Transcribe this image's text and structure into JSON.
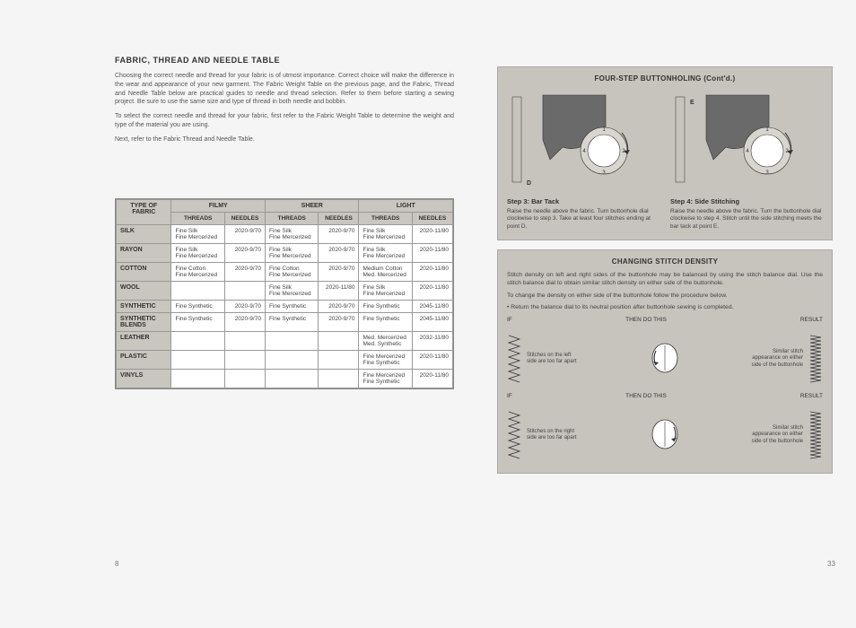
{
  "left": {
    "title": "FABRIC, THREAD AND NEEDLE TABLE",
    "para1": "Choosing the correct needle and thread for your fabric is of utmost importance. Correct choice will make the difference in the wear and appearance of your new garment. The Fabric Weight Table on the previous page, and the Fabric, Thread and Needle Table below are practical guides to needle and thread selection. Refer to them before starting a sewing project. Be sure to use the same size and type of thread in both needle and bobbin.",
    "para2": "To select the correct needle and thread for your fabric, first refer to the Fabric Weight Table to determine the weight and type of the material you are using.",
    "para3": "Next, refer to the Fabric Thread and Needle Table.",
    "table": {
      "top_headers": [
        "TYPE OF FABRIC",
        "FILMY",
        "SHEER",
        "LIGHT"
      ],
      "sub_headers": [
        "THREADS",
        "NEEDLES",
        "THREADS",
        "NEEDLES",
        "THREADS",
        "NEEDLES"
      ],
      "rows": [
        {
          "fabric": "SILK",
          "filmy_t": "Fine Silk\nFine Mercerized",
          "filmy_n": "2020-9/70",
          "sheer_t": "Fine Silk\nFine Mercerized",
          "sheer_n": "2020-9/70",
          "light_t": "Fine Silk\nFine Mercerized",
          "light_n": "2020-11/80"
        },
        {
          "fabric": "RAYON",
          "filmy_t": "Fine Silk\nFine Mercerized",
          "filmy_n": "2020-9/70",
          "sheer_t": "Fine Silk\nFine Mercerized",
          "sheer_n": "2020-9/70",
          "light_t": "Fine Silk\nFine Mercerized",
          "light_n": "2020-11/80"
        },
        {
          "fabric": "COTTON",
          "filmy_t": "Fine Cotton\nFine Mercerized",
          "filmy_n": "2020-9/70",
          "sheer_t": "Fine Cotton\nFine Mercerized",
          "sheer_n": "2020-9/70",
          "light_t": "Medium Cotton\nMed. Mercerized",
          "light_n": "2020-11/80"
        },
        {
          "fabric": "WOOL",
          "filmy_t": "",
          "filmy_n": "",
          "sheer_t": "Fine Silk\nFine Mercerized",
          "sheer_n": "2020-11/80",
          "light_t": "Fine Silk\nFine Mercerized",
          "light_n": "2020-11/80"
        },
        {
          "fabric": "SYNTHETIC",
          "filmy_t": "Fine Synthetic",
          "filmy_n": "2020-9/70",
          "sheer_t": "Fine Synthetic",
          "sheer_n": "2020-9/70",
          "light_t": "Fine Synthetic",
          "light_n": "2045-11/80"
        },
        {
          "fabric": "SYNTHETIC BLENDS",
          "filmy_t": "Fine Synthetic",
          "filmy_n": "2020-9/70",
          "sheer_t": "Fine Synthetic",
          "sheer_n": "2020-9/70",
          "light_t": "Fine Synthetic",
          "light_n": "2045-11/80"
        },
        {
          "fabric": "LEATHER",
          "filmy_t": "",
          "filmy_n": "",
          "sheer_t": "",
          "sheer_n": "",
          "light_t": "Med. Mercerized\nMed. Synthetic",
          "light_n": "2032-11/80"
        },
        {
          "fabric": "PLASTIC",
          "filmy_t": "",
          "filmy_n": "",
          "sheer_t": "",
          "sheer_n": "",
          "light_t": "Fine Mercerized\nFine Synthetic",
          "light_n": "2020-11/80"
        },
        {
          "fabric": "VINYLS",
          "filmy_t": "",
          "filmy_n": "",
          "sheer_t": "",
          "sheer_n": "",
          "light_t": "Fine Mercerized\nFine Synthetic",
          "light_n": "2020-11/80"
        }
      ]
    },
    "page_num": "8"
  },
  "right": {
    "panel1": {
      "title": "FOUR-STEP BUTTONHOLING (Cont'd.)",
      "step3": {
        "label": "Step 3: Bar Tack",
        "text": "Raise the needle above the fabric. Turn buttonhole dial clockwise to step 3. Take at least four stitches ending at point D."
      },
      "step4": {
        "label": "Step 4: Side Stitching",
        "text": "Raise the needle above the fabric. Turn the buttonhole dial clockwise to step 4. Stitch until the side stitching meets the bar tack at point E."
      }
    },
    "panel2": {
      "title": "CHANGING STITCH DENSITY",
      "para1": "Stitch density on left and right sides of the buttonhole may be balanced by using the stitch balance dial. Use the stitch balance dial to obtain similar stitch density on either side of the buttonhole.",
      "para2": "To change the density on either side of the buttonhole follow the procedure below.",
      "para3": "• Return the balance dial to its neutral position after buttonhole sewing is completed.",
      "header_if": "IF",
      "header_then": "THEN DO THIS",
      "header_result": "RESULT",
      "row1_note": "Stitches on the left side are too far apart",
      "row1_result": "Similar stitch appearance on either side of the buttonhole",
      "row2_note": "Stitches on the right side are too far apart",
      "row2_result": "Similar stitch appearance on either side of the buttonhole"
    },
    "page_num": "33"
  },
  "colors": {
    "panel_bg": "#c7c3bd",
    "table_header_bg": "#c9c5bf",
    "page_bg": "#f5f5f5",
    "text": "#444444",
    "border": "#999999"
  }
}
